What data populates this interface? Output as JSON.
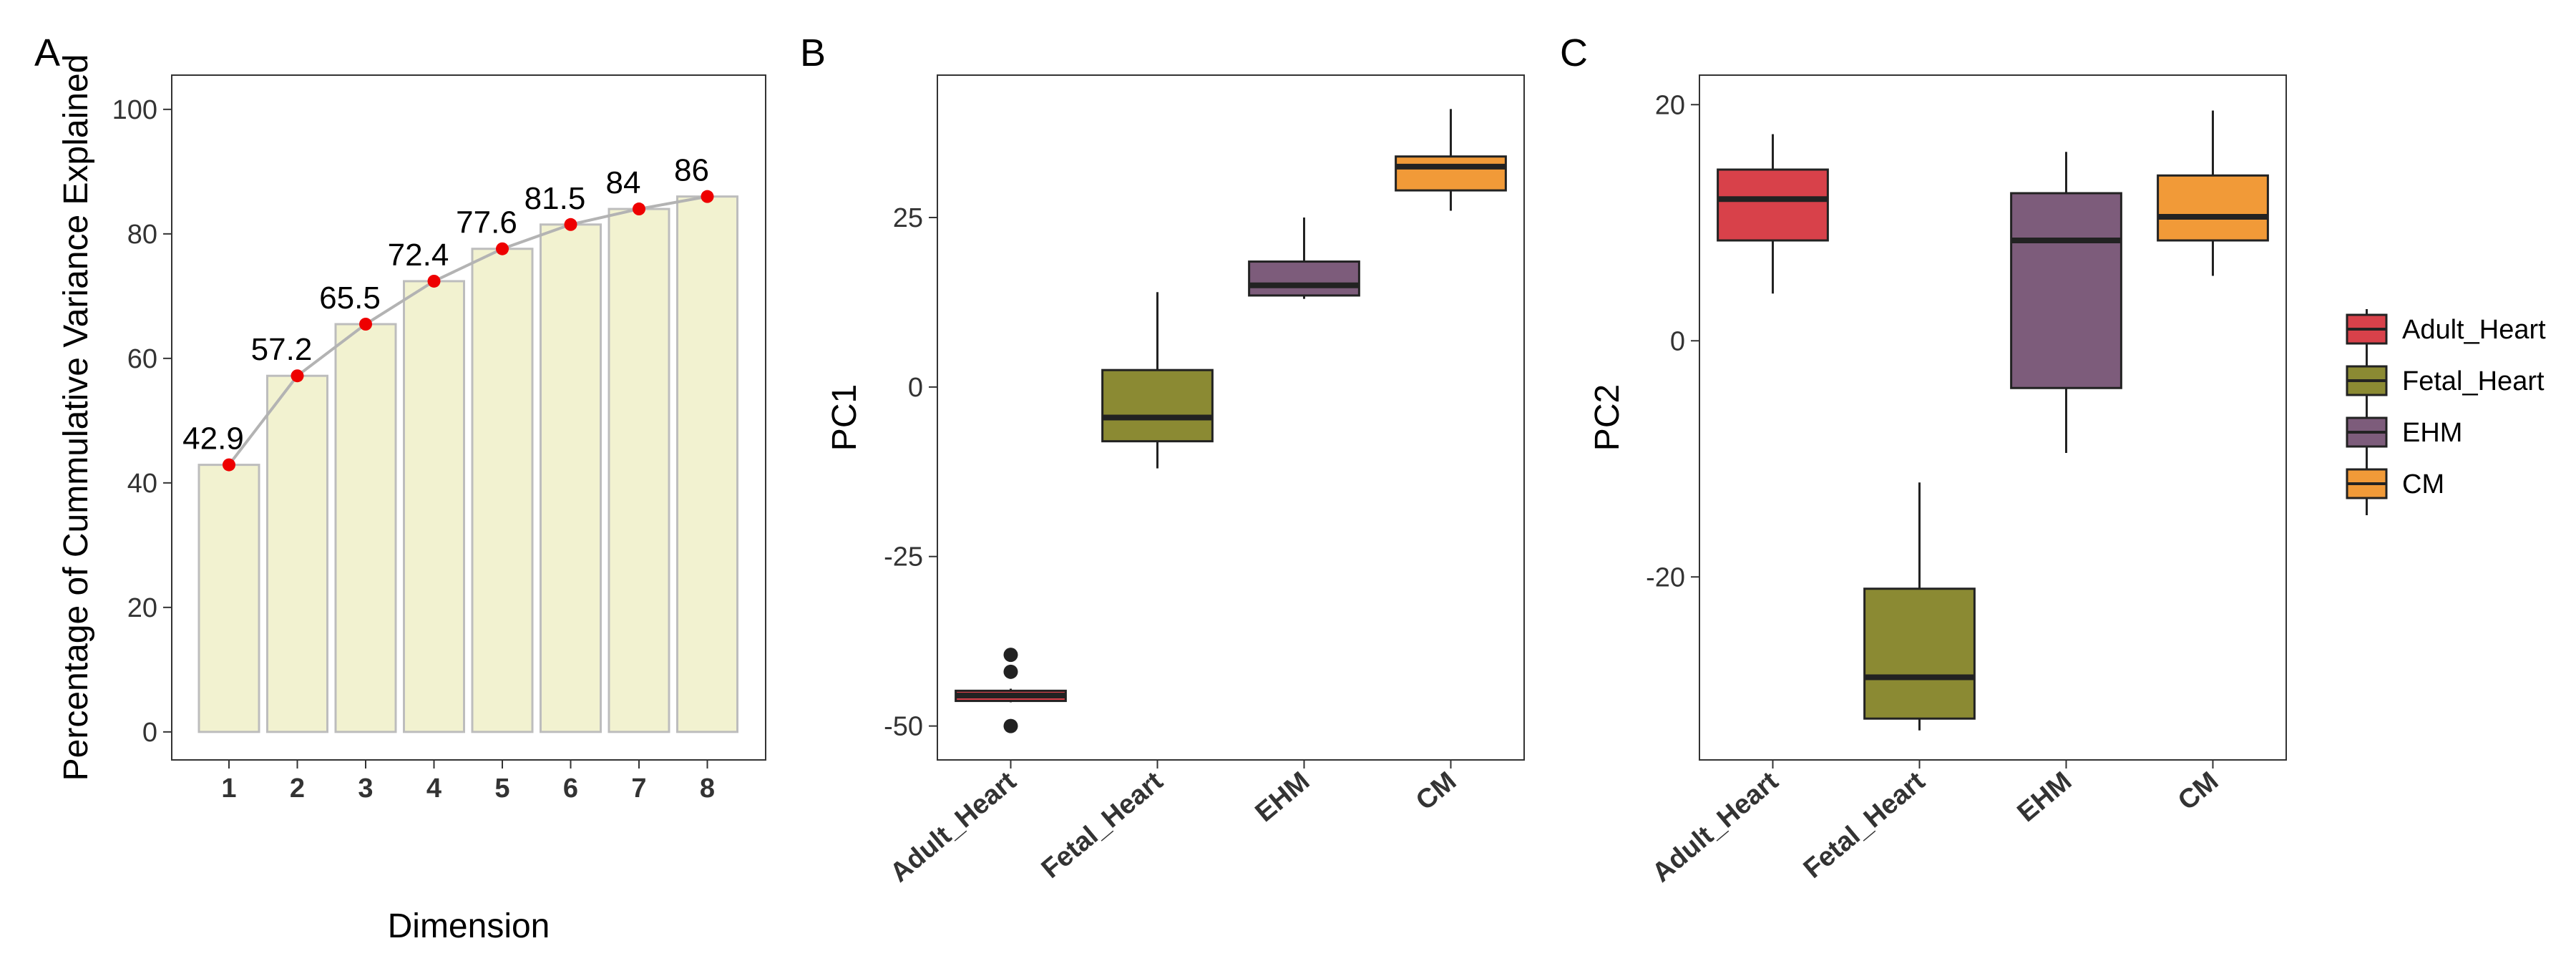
{
  "chart_data": [
    {
      "panel": "A",
      "type": "bar",
      "overlay": "line",
      "title": "",
      "xlabel": "Dimension",
      "ylabel": "Percentage of Cummulative Variance Explained",
      "categories": [
        "1",
        "2",
        "3",
        "4",
        "5",
        "6",
        "7",
        "8"
      ],
      "values": [
        42.9,
        57.2,
        65.5,
        72.4,
        77.6,
        81.5,
        84,
        86
      ],
      "data_labels": [
        "42.9",
        "57.2",
        "65.5",
        "72.4",
        "77.6",
        "81.5",
        "84",
        "86"
      ],
      "ylim": [
        -4.5,
        105.5
      ],
      "yticks": [
        0,
        20,
        40,
        60,
        80,
        100
      ],
      "ytick_labels": [
        "0",
        "20",
        "40",
        "60",
        "80",
        "100"
      ],
      "grid": false,
      "colors": {
        "bar_fill": "#f2f2d0",
        "bar_stroke": "#bdbdbd",
        "line": "#b3b3b3",
        "point": "#ee0000"
      }
    },
    {
      "panel": "B",
      "type": "box",
      "xlabel": "",
      "ylabel": "PC1",
      "categories": [
        "Adult_Heart",
        "Fetal_Heart",
        "EHM",
        "CM"
      ],
      "boxes": [
        {
          "name": "Adult_Heart",
          "min": -46.5,
          "q1": -46.3,
          "median": -45.5,
          "q3": -44.8,
          "max": -44.5,
          "outliers": [
            -39.5,
            -42,
            -50
          ],
          "color": "#d8414a"
        },
        {
          "name": "Fetal_Heart",
          "min": -12,
          "q1": -8,
          "median": -4.5,
          "q3": 2.5,
          "max": 14,
          "outliers": [],
          "color": "#8b8a33"
        },
        {
          "name": "EHM",
          "min": 13,
          "q1": 13.5,
          "median": 15,
          "q3": 18.5,
          "max": 25,
          "outliers": [],
          "color": "#7d5c7b"
        },
        {
          "name": "CM",
          "min": 26,
          "q1": 29,
          "median": 32.5,
          "q3": 34,
          "max": 41,
          "outliers": [],
          "color": "#f19a38"
        }
      ],
      "ylim": [
        -55,
        46
      ],
      "yticks": [
        -50,
        -25,
        0,
        25
      ],
      "ytick_labels": [
        "-50",
        "-25",
        "0",
        "25"
      ],
      "grid": false
    },
    {
      "panel": "C",
      "type": "box",
      "xlabel": "",
      "ylabel": "PC2",
      "categories": [
        "Adult_Heart",
        "Fetal_Heart",
        "EHM",
        "CM"
      ],
      "boxes": [
        {
          "name": "Adult_Heart",
          "min": 4,
          "q1": 8.5,
          "median": 12,
          "q3": 14.5,
          "max": 17.5,
          "outliers": [],
          "color": "#d8414a"
        },
        {
          "name": "Fetal_Heart",
          "min": -33,
          "q1": -32,
          "median": -28.5,
          "q3": -21,
          "max": -12,
          "outliers": [],
          "color": "#8b8a33"
        },
        {
          "name": "EHM",
          "min": -9.5,
          "q1": -4,
          "median": 8.5,
          "q3": 12.5,
          "max": 16,
          "outliers": [],
          "color": "#7d5c7b"
        },
        {
          "name": "CM",
          "min": 5.5,
          "q1": 8.5,
          "median": 10.5,
          "q3": 14,
          "max": 19.5,
          "outliers": [],
          "color": "#f19a38"
        }
      ],
      "ylim": [
        -35.5,
        22.5
      ],
      "yticks": [
        -20,
        0,
        20
      ],
      "ytick_labels": [
        "-20",
        "0",
        "20"
      ],
      "grid": false,
      "legend": {
        "position": "right",
        "entries": [
          {
            "label": "Adult_Heart",
            "color": "#d8414a"
          },
          {
            "label": "Fetal_Heart",
            "color": "#8b8a33"
          },
          {
            "label": "EHM",
            "color": "#7d5c7b"
          },
          {
            "label": "CM",
            "color": "#f19a38"
          }
        ]
      }
    }
  ]
}
